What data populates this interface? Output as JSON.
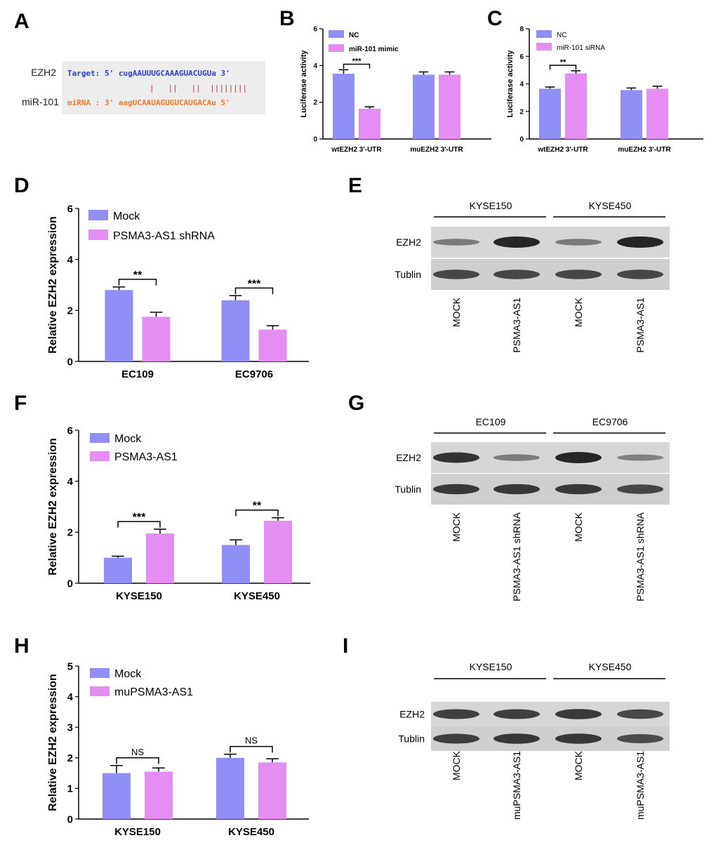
{
  "colors": {
    "series1": "#8f8ff5",
    "series2": "#e48df2",
    "seq_target": "#2a3fd6",
    "seq_mirna": "#ef7a2a",
    "seq_bar": "#c0392b",
    "seq_bg": "#ececec",
    "blot_bg": "#d9d9d9",
    "blot_band": "#1c1c1c"
  },
  "panel_labels": [
    "A",
    "B",
    "C",
    "D",
    "E",
    "F",
    "G",
    "H",
    "I"
  ],
  "panelA": {
    "gene_label": "EZH2",
    "mirna_label": "miR-101",
    "target_line": "Target: 5' cugAAUUUGCAAAGUACUGUa 3'",
    "pairing_line": "|   ||   ||  ||||||||",
    "mirna_line": "miRNA : 3' aagUCAAUAGUGUCAUGACAu 5'"
  },
  "chart_data": [
    {
      "id": "B",
      "type": "bar",
      "categories": [
        "wtEZH2 3'-UTR",
        "muEZH2 3'-UTR"
      ],
      "series": [
        {
          "name": "NC",
          "values": [
            3.55,
            3.5
          ],
          "errors": [
            0.22,
            0.15
          ]
        },
        {
          "name": "miR-101 mimic",
          "values": [
            1.65,
            3.5
          ],
          "errors": [
            0.1,
            0.15
          ]
        }
      ],
      "ylabel": "Luciferase activity",
      "xlabel": "",
      "ylim": [
        0,
        6
      ],
      "yticks": [
        0,
        2,
        4,
        6
      ],
      "significance": [
        {
          "category": 0,
          "label": "***"
        }
      ]
    },
    {
      "id": "C",
      "type": "bar",
      "categories": [
        "wtEZH2 3'-UTR",
        "muEZH2 3'-UTR"
      ],
      "series": [
        {
          "name": "NC",
          "values": [
            3.65,
            3.55
          ],
          "errors": [
            0.12,
            0.15
          ]
        },
        {
          "name": "miR-101 siRNA",
          "values": [
            4.75,
            3.65
          ],
          "errors": [
            0.2,
            0.18
          ]
        }
      ],
      "ylabel": "Luciferase activity",
      "xlabel": "",
      "ylim": [
        0,
        8
      ],
      "yticks": [
        0,
        2,
        4,
        6,
        8
      ],
      "significance": [
        {
          "category": 0,
          "label": "**"
        }
      ]
    },
    {
      "id": "D",
      "type": "bar",
      "categories": [
        "EC109",
        "EC9706"
      ],
      "series": [
        {
          "name": "Mock",
          "values": [
            2.8,
            2.4
          ],
          "errors": [
            0.12,
            0.18
          ]
        },
        {
          "name": "PSMA3-AS1 shRNA",
          "values": [
            1.75,
            1.25
          ],
          "errors": [
            0.18,
            0.15
          ]
        }
      ],
      "ylabel": "Relative EZH2 expression",
      "xlabel": "",
      "ylim": [
        0,
        6
      ],
      "yticks": [
        0,
        2,
        4,
        6
      ],
      "significance": [
        {
          "category": 0,
          "label": "**"
        },
        {
          "category": 1,
          "label": "***"
        }
      ]
    },
    {
      "id": "F",
      "type": "bar",
      "categories": [
        "KYSE150",
        "KYSE450"
      ],
      "series": [
        {
          "name": "Mock",
          "values": [
            1.0,
            1.5
          ],
          "errors": [
            0.06,
            0.2
          ]
        },
        {
          "name": "PSMA3-AS1",
          "values": [
            1.95,
            2.45
          ],
          "errors": [
            0.17,
            0.12
          ]
        }
      ],
      "ylabel": "Relative EZH2 expression",
      "xlabel": "",
      "ylim": [
        0,
        6
      ],
      "yticks": [
        0,
        2,
        4,
        6
      ],
      "significance": [
        {
          "category": 0,
          "label": "***"
        },
        {
          "category": 1,
          "label": "**"
        }
      ]
    },
    {
      "id": "H",
      "type": "bar",
      "categories": [
        "KYSE150",
        "KYSE450"
      ],
      "series": [
        {
          "name": "Mock",
          "values": [
            1.5,
            2.0
          ],
          "errors": [
            0.25,
            0.12
          ]
        },
        {
          "name": "muPSMA3-AS1",
          "values": [
            1.55,
            1.85
          ],
          "errors": [
            0.12,
            0.12
          ]
        }
      ],
      "ylabel": "Relative EZH2 expression",
      "xlabel": "",
      "ylim": [
        0,
        5
      ],
      "yticks": [
        0,
        1,
        2,
        3,
        4,
        5
      ],
      "significance": [
        {
          "category": 0,
          "label": "NS"
        },
        {
          "category": 1,
          "label": "NS"
        }
      ]
    }
  ],
  "blots": [
    {
      "id": "E",
      "groups": [
        "KYSE150",
        "KYSE450"
      ],
      "rows": [
        "EZH2",
        "Tublin"
      ],
      "lanes": [
        "MOCK",
        "PSMA3-AS1",
        "MOCK",
        "PSMA3-AS1"
      ],
      "intensity": [
        [
          0.35,
          1.0,
          0.35,
          1.0
        ],
        [
          0.75,
          0.75,
          0.75,
          0.75
        ]
      ]
    },
    {
      "id": "G",
      "groups": [
        "EC109",
        "EC9706"
      ],
      "rows": [
        "EZH2",
        "Tublin"
      ],
      "lanes": [
        "MOCK",
        "PSMA3-AS1 shRNA",
        "MOCK",
        "PSMA3-AS1 shRNA"
      ],
      "intensity": [
        [
          0.9,
          0.35,
          1.0,
          0.3
        ],
        [
          0.85,
          0.85,
          0.85,
          0.75
        ]
      ]
    },
    {
      "id": "I",
      "groups": [
        "KYSE150",
        "KYSE450"
      ],
      "rows": [
        "EZH2",
        "Tublin"
      ],
      "lanes": [
        "MOCK",
        "muPSMA3-AS1",
        "MOCK",
        "muPSMA3-AS1"
      ],
      "intensity": [
        [
          0.8,
          0.8,
          0.85,
          0.75
        ],
        [
          0.8,
          0.85,
          0.85,
          0.7
        ]
      ]
    }
  ]
}
